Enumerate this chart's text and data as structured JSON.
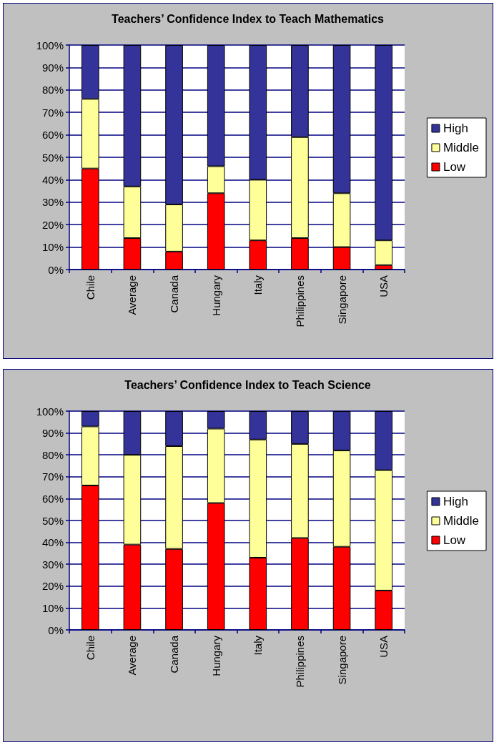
{
  "chart_data": [
    {
      "type": "bar",
      "title": "Teachers’ Confidence Index to Teach Mathematics",
      "categories": [
        "Chile",
        "Average",
        "Canada",
        "Hungary",
        "Italy",
        "Philippines",
        "Singapore",
        "USA"
      ],
      "stacked": true,
      "ylim": [
        0,
        100
      ],
      "yticks": [
        {
          "value": 0,
          "label": "0%"
        },
        {
          "value": 10,
          "label": "10%"
        },
        {
          "value": 20,
          "label": "20%"
        },
        {
          "value": 30,
          "label": "30%"
        },
        {
          "value": 40,
          "label": "40%"
        },
        {
          "value": 50,
          "label": "50%"
        },
        {
          "value": 60,
          "label": "60%"
        },
        {
          "value": 70,
          "label": "70%"
        },
        {
          "value": 80,
          "label": "80%"
        },
        {
          "value": 90,
          "label": "90%"
        },
        {
          "value": 100,
          "label": "100%"
        }
      ],
      "grid": "y",
      "legend": "right",
      "series": [
        {
          "name": "Low",
          "color": "#ff0000",
          "values": [
            45,
            14,
            8,
            34,
            13,
            14,
            10,
            2
          ]
        },
        {
          "name": "Middle",
          "color": "#ffff99",
          "values": [
            31,
            23,
            21,
            12,
            27,
            45,
            24,
            11
          ]
        },
        {
          "name": "High",
          "color": "#333399",
          "values": [
            24,
            63,
            71,
            54,
            60,
            41,
            66,
            87
          ]
        }
      ]
    },
    {
      "type": "bar",
      "title": "Teachers’ Confidence Index to Teach Science",
      "categories": [
        "Chile",
        "Average",
        "Canada",
        "Hungary",
        "Italy",
        "Philippines",
        "Singapore",
        "USA"
      ],
      "stacked": true,
      "ylim": [
        0,
        100
      ],
      "yticks": [
        {
          "value": 0,
          "label": "0%"
        },
        {
          "value": 10,
          "label": "10%"
        },
        {
          "value": 20,
          "label": "20%"
        },
        {
          "value": 30,
          "label": "30%"
        },
        {
          "value": 40,
          "label": "40%"
        },
        {
          "value": 50,
          "label": "50%"
        },
        {
          "value": 60,
          "label": "60%"
        },
        {
          "value": 70,
          "label": "70%"
        },
        {
          "value": 80,
          "label": "80%"
        },
        {
          "value": 90,
          "label": "90%"
        },
        {
          "value": 100,
          "label": "100%"
        }
      ],
      "grid": "y",
      "legend": "right",
      "series": [
        {
          "name": "Low",
          "color": "#ff0000",
          "values": [
            66,
            39,
            37,
            58,
            33,
            42,
            38,
            18
          ]
        },
        {
          "name": "Middle",
          "color": "#ffff99",
          "values": [
            27,
            41,
            47,
            34,
            54,
            43,
            44,
            55
          ]
        },
        {
          "name": "High",
          "color": "#333399",
          "values": [
            7,
            20,
            16,
            8,
            13,
            15,
            18,
            27
          ]
        }
      ]
    }
  ]
}
